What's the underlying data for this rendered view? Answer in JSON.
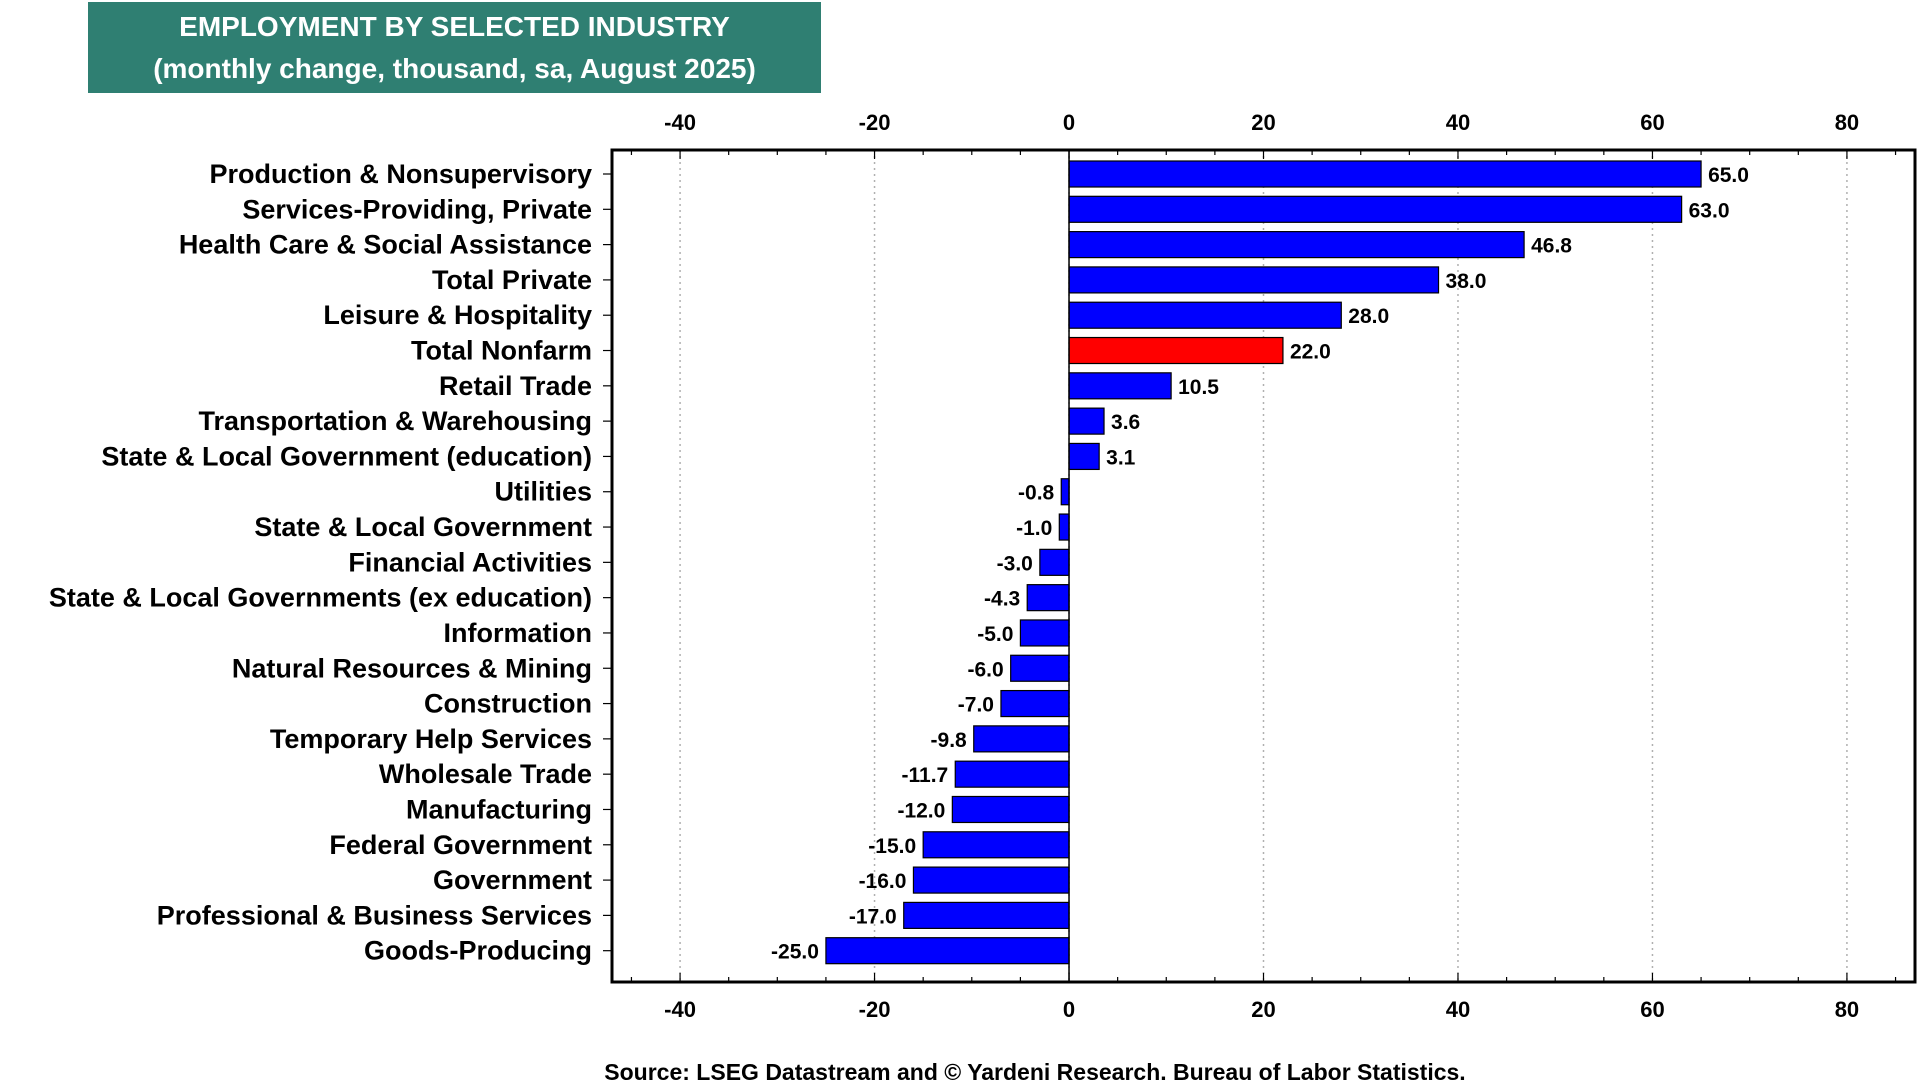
{
  "title": {
    "line1": "EMPLOYMENT BY SELECTED INDUSTRY",
    "line2": "(monthly change, thousand, sa, August 2025)"
  },
  "source": "Source: LSEG Datastream and © Yardeni Research. Bureau of Labor Statistics.",
  "colors": {
    "bar": "#0000ff",
    "highlight": "#ff0000",
    "title_bg": "#2f7f72"
  },
  "chart_data": {
    "type": "bar",
    "orientation": "horizontal",
    "title": "EMPLOYMENT BY SELECTED INDUSTRY (monthly change, thousand, sa, August 2025)",
    "xlim": [
      -47,
      87
    ],
    "xticks": [
      -40,
      -20,
      0,
      20,
      40,
      60,
      80
    ],
    "grid": true,
    "highlight_category": "Total Nonfarm",
    "categories": [
      "Production & Nonsupervisory",
      "Services-Providing, Private",
      "Health Care & Social Assistance",
      "Total Private",
      "Leisure & Hospitality",
      "Total Nonfarm",
      "Retail Trade",
      "Transportation & Warehousing",
      "State & Local Government (education)",
      "Utilities",
      "State & Local Government",
      "Financial Activities",
      "State & Local Governments (ex education)",
      "Information",
      "Natural Resources & Mining",
      "Construction",
      "Temporary Help Services",
      "Wholesale Trade",
      "Manufacturing",
      "Federal Government",
      "Government",
      "Professional & Business Services",
      "Goods-Producing"
    ],
    "values": [
      65.0,
      63.0,
      46.8,
      38.0,
      28.0,
      22.0,
      10.5,
      3.6,
      3.1,
      -0.8,
      -1.0,
      -3.0,
      -4.3,
      -5.0,
      -6.0,
      -7.0,
      -9.8,
      -11.7,
      -12.0,
      -15.0,
      -16.0,
      -17.0,
      -25.0
    ],
    "value_labels": [
      "65.0",
      "63.0",
      "46.8",
      "38.0",
      "28.0",
      "22.0",
      "10.5",
      "3.6",
      "3.1",
      "-0.8",
      "-1.0",
      "-3.0",
      "-4.3",
      "-5.0",
      "-6.0",
      "-7.0",
      "-9.8",
      "-11.7",
      "-12.0",
      "-15.0",
      "-16.0",
      "-17.0",
      "-25.0"
    ]
  }
}
